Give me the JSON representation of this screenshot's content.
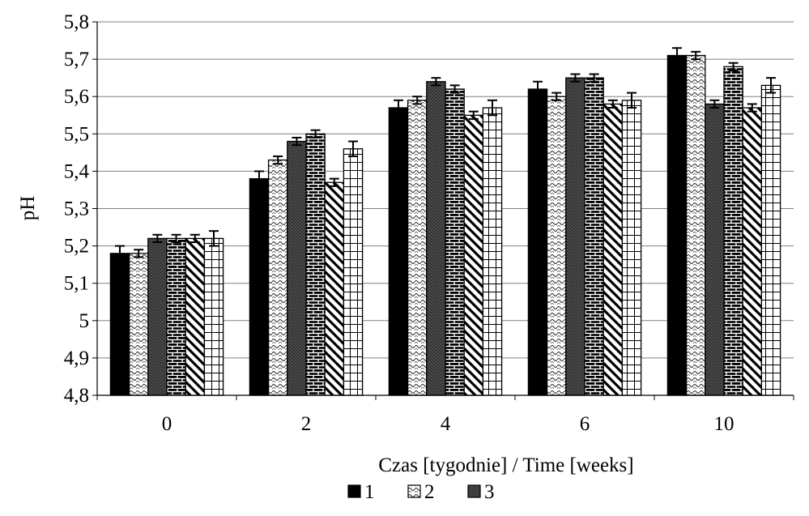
{
  "chart_data": {
    "type": "bar",
    "xlabel": "Czas [tygodnie] / Time [weeks]",
    "ylabel": "pH",
    "ylim": [
      4.8,
      5.8
    ],
    "ytick_step": 0.1,
    "ytick_labels": [
      "4,8",
      "4,9",
      "5",
      "5,1",
      "5,2",
      "5,3",
      "5,4",
      "5,5",
      "5,6",
      "5,7",
      "5,8"
    ],
    "categories": [
      "0",
      "2",
      "4",
      "6",
      "10"
    ],
    "grid": "horizontal",
    "legend_position": "bottom",
    "series": [
      {
        "name": "1",
        "pattern": "solid-black",
        "values": [
          5.18,
          5.38,
          5.57,
          5.62,
          5.71
        ],
        "errors": [
          0.02,
          0.02,
          0.02,
          0.02,
          0.02
        ]
      },
      {
        "name": "2",
        "pattern": "dotted",
        "values": [
          5.18,
          5.43,
          5.59,
          5.6,
          5.71
        ],
        "errors": [
          0.01,
          0.01,
          0.01,
          0.01,
          0.01
        ]
      },
      {
        "name": "3",
        "pattern": "dark-gray",
        "values": [
          5.22,
          5.48,
          5.64,
          5.65,
          5.58
        ],
        "errors": [
          0.01,
          0.01,
          0.01,
          0.01,
          0.01
        ]
      },
      {
        "pattern": "brick",
        "values": [
          5.22,
          5.5,
          5.62,
          5.65,
          5.68
        ],
        "errors": [
          0.01,
          0.01,
          0.01,
          0.01,
          0.01
        ]
      },
      {
        "pattern": "diagonal",
        "values": [
          5.22,
          5.37,
          5.55,
          5.58,
          5.57
        ],
        "errors": [
          0.01,
          0.01,
          0.01,
          0.01,
          0.01
        ]
      },
      {
        "pattern": "grid",
        "values": [
          5.22,
          5.46,
          5.57,
          5.59,
          5.63
        ],
        "errors": [
          0.02,
          0.02,
          0.02,
          0.02,
          0.02
        ]
      }
    ]
  }
}
